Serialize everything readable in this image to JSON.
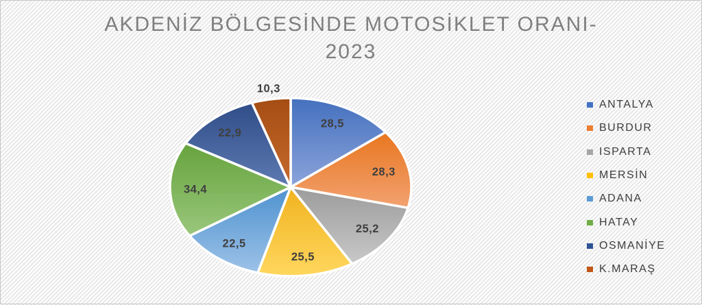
{
  "chart": {
    "title_line1": "AKDENİZ BÖLGESİNDE MOTOSİKLET ORANI-",
    "title_line2": "2023",
    "title_color": "#7f7f7f",
    "data_label_color": "#3f3f3f",
    "legend_text_color": "#3d3d3d",
    "background_style": "diagonal-hatch"
  },
  "chart_data": {
    "type": "pie",
    "title": "AKDENİZ BÖLGESİNDE MOTOSİKLET ORANI-2023",
    "legend_position": "right",
    "start_angle_deg": 0,
    "direction": "clockwise",
    "value_decimal_separator": ",",
    "categories": [
      "ANTALYA",
      "BURDUR",
      "ISPARTA",
      "MERSİN",
      "ADANA",
      "HATAY",
      "OSMANİYE",
      "K.MARAŞ"
    ],
    "values": [
      28.5,
      28.3,
      25.2,
      25.5,
      22.5,
      34.4,
      22.9,
      10.3
    ],
    "labels": [
      "28,5",
      "28,3",
      "25,2",
      "25,5",
      "22,5",
      "34,4",
      "22,9",
      "10,3"
    ],
    "colors": [
      "#4472C4",
      "#ED7D31",
      "#A5A5A5",
      "#FFC000",
      "#5B9BD5",
      "#70AD47",
      "#2E5395",
      "#C05617"
    ],
    "gradients": [
      [
        "#4470BE",
        "#8CA4DA"
      ],
      [
        "#E8761F",
        "#F2A271"
      ],
      [
        "#9C9C9C",
        "#C8C8C8"
      ],
      [
        "#F0B21F",
        "#FFD75E"
      ],
      [
        "#4E92CF",
        "#9DC2E8"
      ],
      [
        "#66A33D",
        "#9AC77C"
      ],
      [
        "#2F4D88",
        "#5E7AB2"
      ],
      [
        "#A54D13",
        "#C56A2E"
      ]
    ]
  }
}
